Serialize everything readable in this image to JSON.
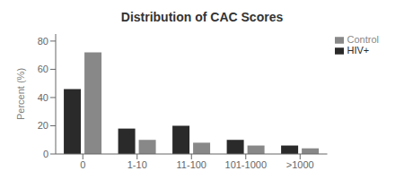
{
  "chart_data": {
    "type": "bar",
    "title": "Distribution of CAC Scores",
    "y_label": "Percent (%)",
    "categories": [
      "0",
      "1-10",
      "11-100",
      "101-1000",
      ">1000"
    ],
    "series": [
      {
        "name": "HIV+",
        "color": "#2a2a2a",
        "values": [
          46,
          18,
          20,
          10,
          6
        ]
      },
      {
        "name": "Control",
        "color": "#888888",
        "values": [
          72,
          10,
          8,
          6,
          4
        ]
      }
    ],
    "ylim": [
      0,
      85
    ],
    "yticks": [
      0,
      20,
      40,
      60,
      80
    ],
    "grid": false,
    "legend": "upper right"
  }
}
